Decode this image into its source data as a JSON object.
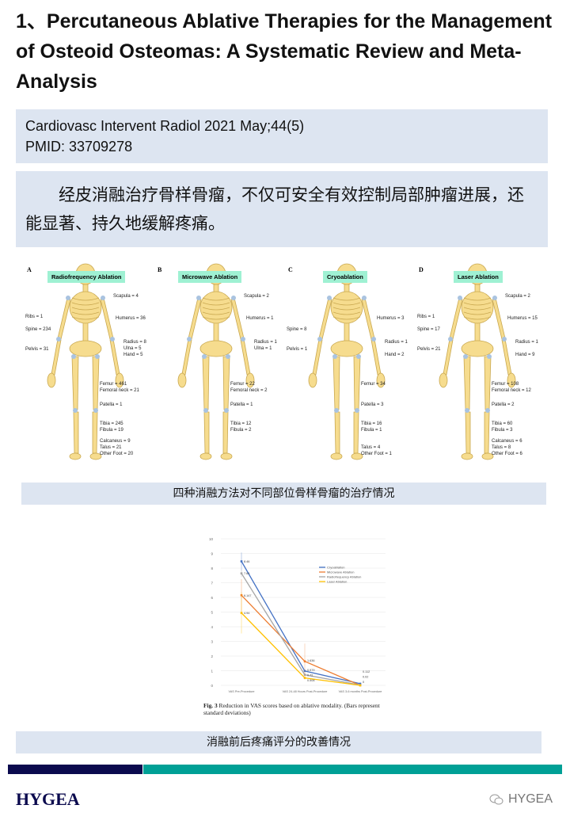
{
  "title": "1、Percutaneous Ablative Therapies for the Management of Osteoid Osteomas: A Systematic Review and Meta-Analysis",
  "citation": {
    "journal": "Cardiovasc Intervent Radiol 2021 May;44(5)",
    "pmid": "PMID: 33709278"
  },
  "summary": "经皮消融治疗骨样骨瘤，不仅可安全有效控制局部肿瘤进展，还能显著、持久地缓解疼痛。",
  "figure1": {
    "caption": "四种消融方法对不同部位骨样骨瘤的治疗情况",
    "panels": [
      {
        "letter": "A",
        "title": "Radiofrequency Ablation",
        "labels": {
          "scapula": "Scapula = 4",
          "ribs": "Ribs = 1",
          "humerus": "Humerus = 36",
          "spine": "Spine = 234",
          "pelvis": "Pelvis = 31",
          "radius": "Radius = 8",
          "ulna": "Ulna = 5",
          "hand": "Hand = 5",
          "femur": "Femur = 461",
          "femoral_neck": "Femoral neck = 21",
          "patella": "Patella = 1",
          "tibia": "Tibia = 245",
          "fibula": "Fibula = 19",
          "calcaneus": "Calcaneus = 9",
          "talus": "Talus = 21",
          "other_foot": "Other Foot =  20"
        }
      },
      {
        "letter": "B",
        "title": "Microwave Ablation",
        "labels": {
          "scapula": "Scapula = 2",
          "humerus": "Humerus = 1",
          "radius": "Radius = 1",
          "ulna": "Ulna = 1",
          "femur": "Femur = 22",
          "femoral_neck": "Femoral neck = 2",
          "patella": "Patella = 1",
          "tibia": "Tibia = 12",
          "fibula": "Fibula = 2"
        }
      },
      {
        "letter": "C",
        "title": "Cryoablation",
        "labels": {
          "humerus": "Humerus = 3",
          "spine": "Spine = 8",
          "pelvis": "Pelvis = 1",
          "radius": "Radius = 1",
          "hand": "Hand = 2",
          "femur": "Femur = 34",
          "patella": "Patella = 3",
          "tibia": "Tibia = 16",
          "fibula": "Fibula = 1",
          "talus": "Talus = 4",
          "other_foot": "Other Foot = 1"
        }
      },
      {
        "letter": "D",
        "title": "Laser Ablation",
        "labels": {
          "scapula": "Scapula = 2",
          "ribs": "Ribs = 1",
          "humerus": "Humerus = 15",
          "spine": "Spine = 17",
          "pelvis": "Pelvis = 21",
          "radius": "Radius = 1",
          "hand": "Hand = 9",
          "femur": "Femur = 108",
          "femoral_neck": "Femoral neck = 12",
          "patella": "Patella = 2",
          "tibia": "Tibia = 60",
          "fibula": "Fibula = 3",
          "calcaneus": "Calcaneus = 6",
          "talus": "Talus = 8",
          "other_foot": "Other Foot = 6"
        }
      }
    ]
  },
  "chart_data": {
    "type": "line",
    "categories": [
      "VAS Pre-Procedure",
      "VAS 24-48 Hours Post-Procedure",
      "VAS 3-6 months Post-Procedure"
    ],
    "ylim": [
      0,
      10
    ],
    "yticks": [
      0,
      1,
      2,
      3,
      4,
      5,
      6,
      7,
      8,
      9,
      10
    ],
    "legend_position": "top-right",
    "error_bars": "standard deviation",
    "series": [
      {
        "name": "Cryoablation",
        "color": "#4472c4",
        "values": [
          8.46,
          0.979,
          0.112
        ],
        "labels": [
          "8.46",
          "0.979",
          "0.112"
        ]
      },
      {
        "name": "Microwave Ablation",
        "color": "#ed7d31",
        "values": [
          6.147,
          1.636,
          0
        ],
        "labels": [
          "6.147",
          "1.636",
          "0"
        ]
      },
      {
        "name": "Radiofrequency Ablation",
        "color": "#a5a5a5",
        "values": [
          7.64,
          0.72,
          0.02
        ],
        "labels": [
          "7.64",
          "0.72",
          "0.02"
        ]
      },
      {
        "name": "Laser Ablation",
        "color": "#ffc000",
        "values": [
          4.94,
          0.508,
          0
        ],
        "labels": [
          "4.94",
          "0.508",
          ""
        ]
      }
    ],
    "caption_label": "Fig. 3",
    "caption_text": "Reduction in VAS scores based on ablative modality. (Bars represent standard deviations)"
  },
  "figure2_caption": "消融前后疼痛评分的改善情况",
  "footer": {
    "logo": "HYGEA",
    "watermark": "HYGEA",
    "colors": {
      "navy": "#0b0a4e",
      "teal": "#00a096"
    }
  }
}
